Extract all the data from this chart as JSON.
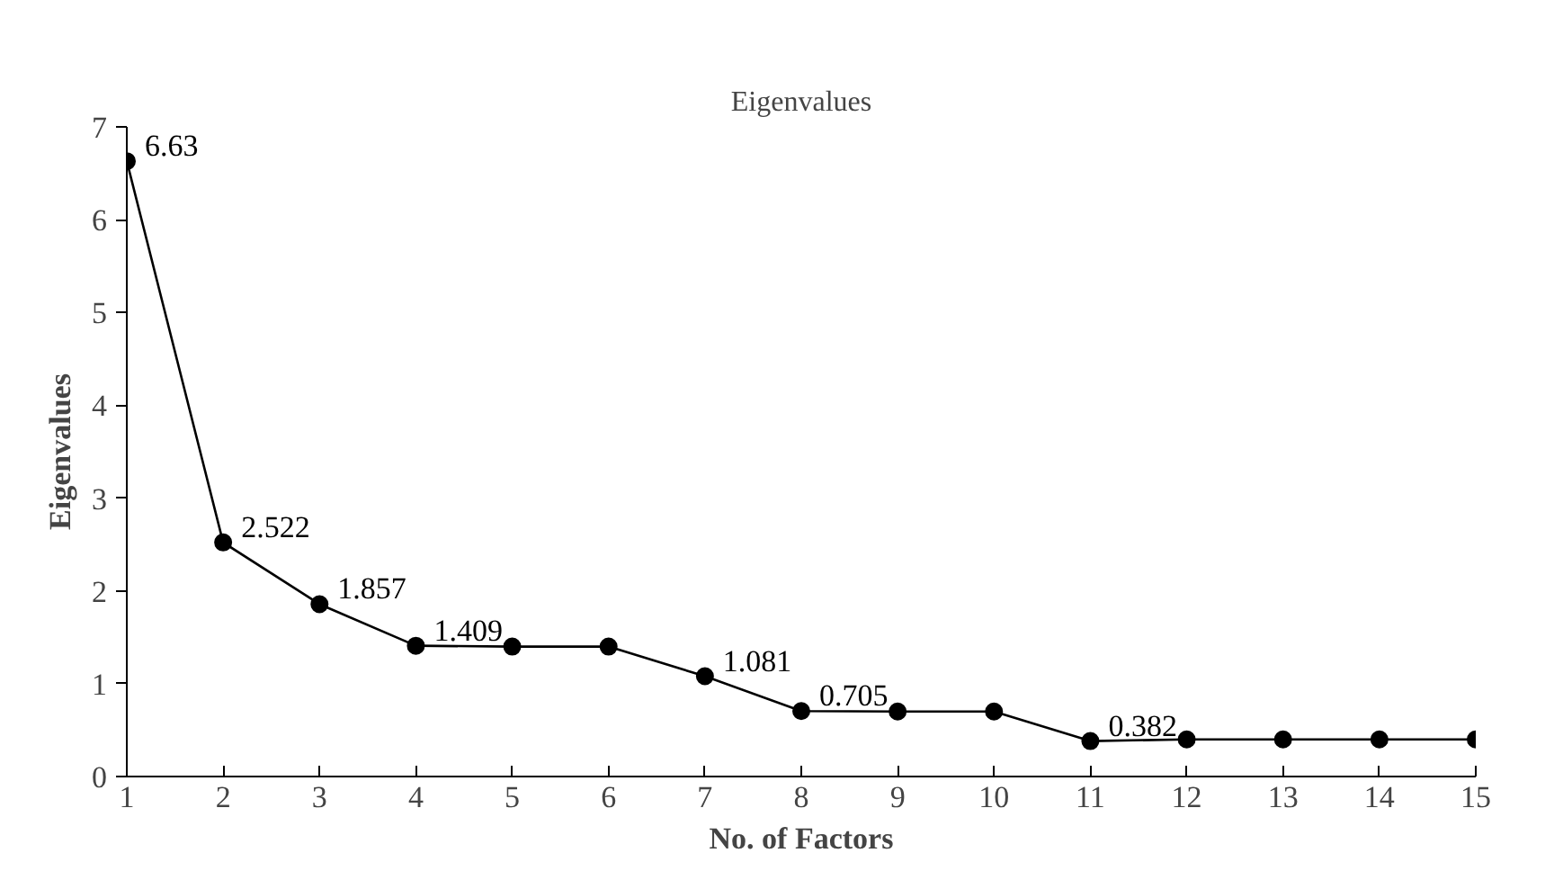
{
  "chart_data": {
    "type": "line",
    "title": "Eigenvalues",
    "xlabel": "No. of Factors",
    "ylabel": "Eigenvalues",
    "x": [
      1,
      2,
      3,
      4,
      5,
      6,
      7,
      8,
      9,
      10,
      11,
      12,
      13,
      14,
      15
    ],
    "series": [
      {
        "color": "#000000",
        "values": [
          6.63,
          2.522,
          1.857,
          1.409,
          1.4,
          1.4,
          1.081,
          0.705,
          0.7,
          0.7,
          0.382,
          0.4,
          0.4,
          0.4,
          0.4
        ],
        "value_labels": [
          "6.63",
          "2.522",
          "1.857",
          "1.409",
          null,
          null,
          "1.081",
          "0.705",
          null,
          null,
          "0.382",
          null,
          null,
          null,
          null
        ]
      }
    ],
    "xlim": [
      1,
      15
    ],
    "xticks": [
      1,
      2,
      3,
      4,
      5,
      6,
      7,
      8,
      9,
      10,
      11,
      12,
      13,
      14,
      15
    ],
    "ylim": [
      0,
      7
    ],
    "yticks": [
      0,
      1,
      2,
      3,
      4,
      5,
      6,
      7
    ],
    "marker": "circle",
    "line_style": "solid",
    "grid": false
  }
}
